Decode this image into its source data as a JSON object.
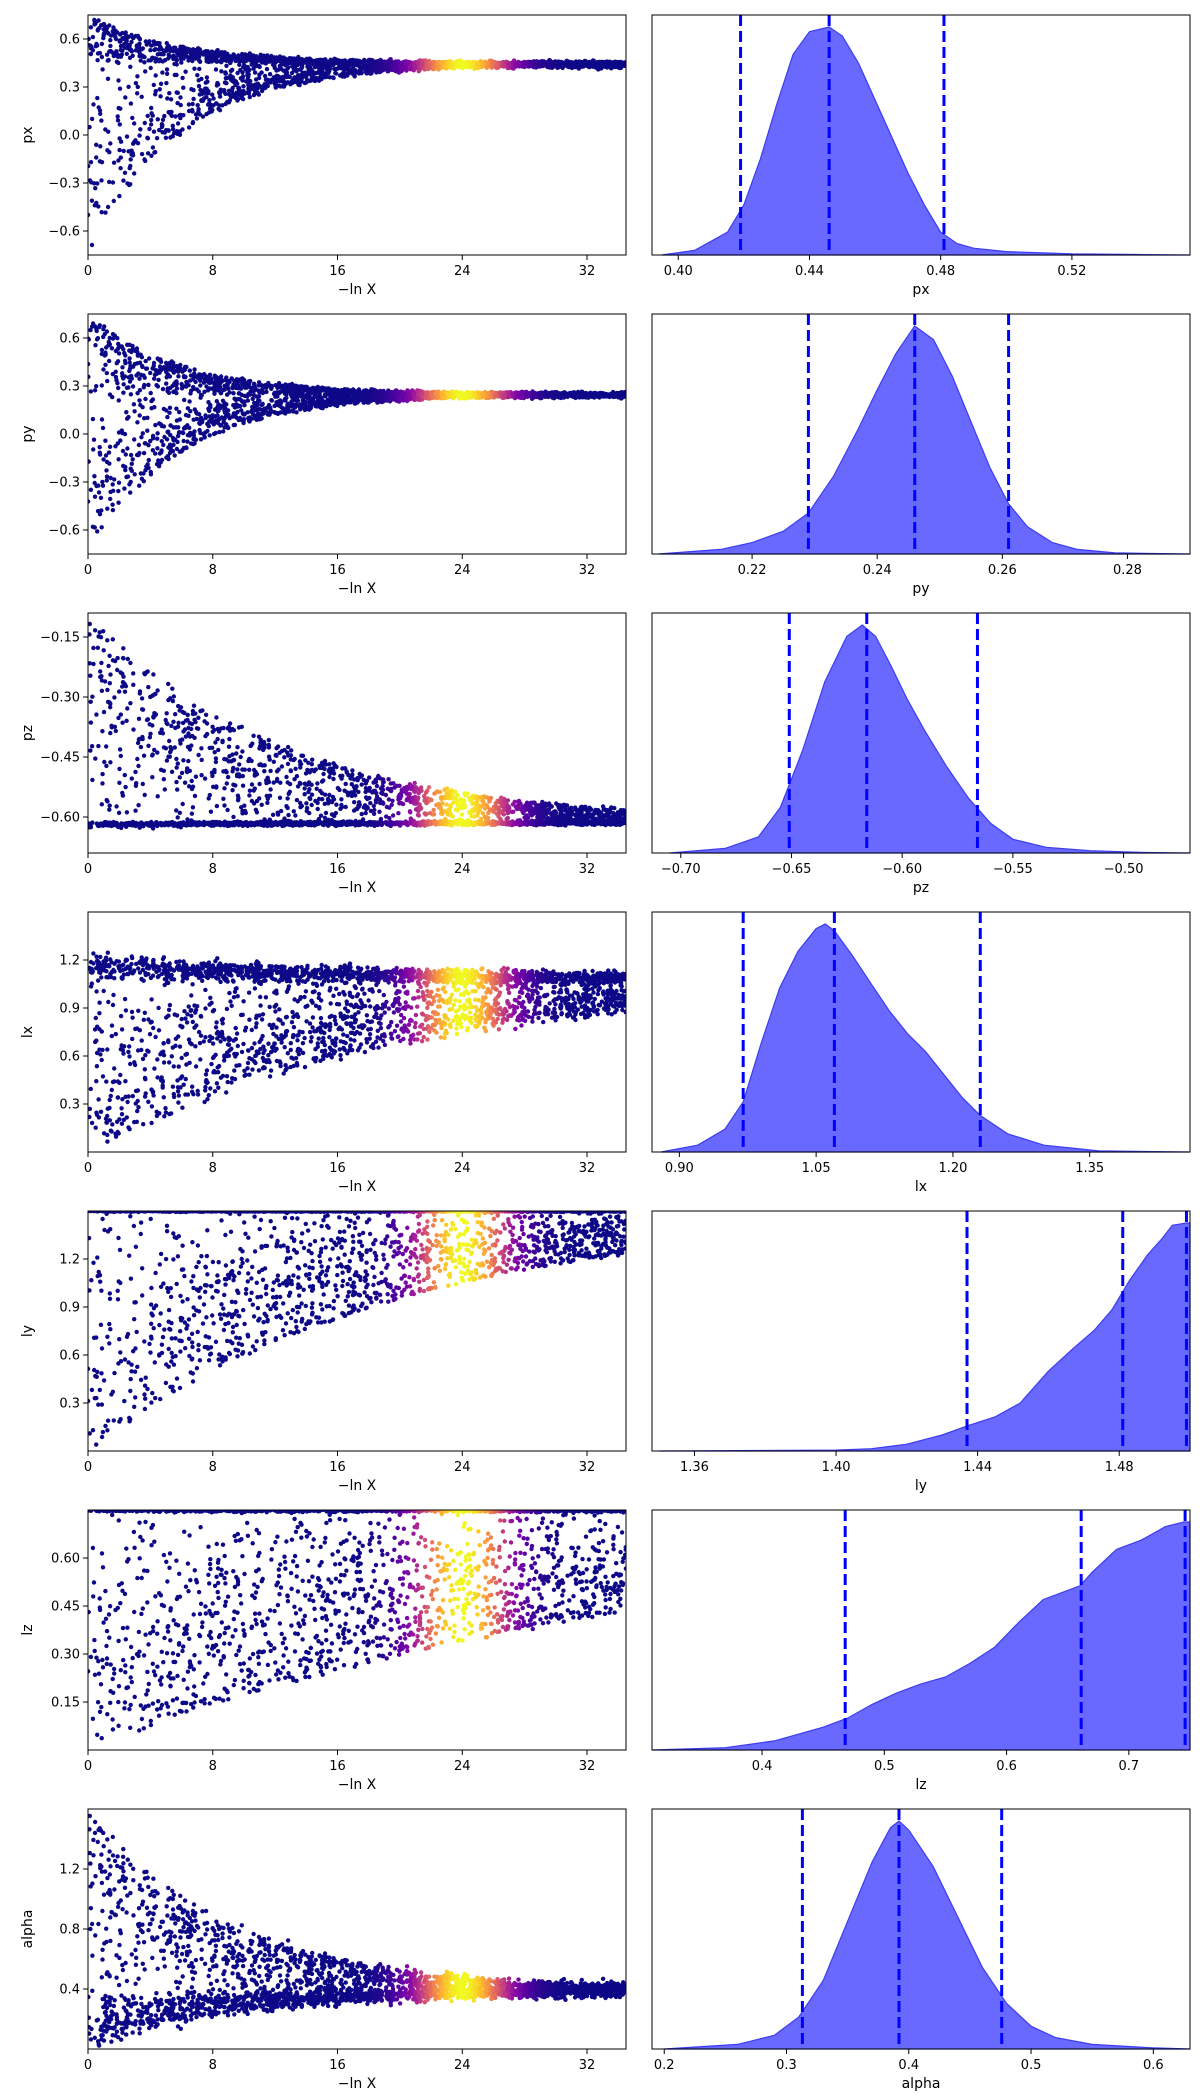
{
  "chart_data": [
    {
      "type": "scatter",
      "panel": "trace",
      "ylabel": "px",
      "xlabel": "−ln X",
      "xlim": [
        0,
        34.5
      ],
      "ylim": [
        -0.75,
        0.75
      ],
      "xticks": [
        "0",
        "8",
        "16",
        "24",
        "32"
      ],
      "xtick_values": [
        0,
        8,
        16,
        24,
        32
      ],
      "yticks": [
        "−0.6",
        "−0.3",
        "0.0",
        "0.3",
        "0.6"
      ],
      "ytick_values": [
        -0.6,
        -0.3,
        0,
        0.3,
        0.6
      ],
      "converge_to": 0.445,
      "peak_x": 24,
      "colormap": "plasma"
    },
    {
      "type": "area",
      "panel": "posterior",
      "xlabel": "px",
      "xlim": [
        0.392,
        0.556
      ],
      "xticks": [
        "0.40",
        "0.44",
        "0.48",
        "0.52"
      ],
      "xtick_values": [
        0.4,
        0.44,
        0.48,
        0.52
      ],
      "quantile_lines": [
        0.419,
        0.446,
        0.481
      ],
      "density_x": [
        0.395,
        0.405,
        0.415,
        0.42,
        0.425,
        0.43,
        0.435,
        0.44,
        0.446,
        0.45,
        0.455,
        0.46,
        0.465,
        0.47,
        0.475,
        0.48,
        0.485,
        0.49,
        0.5,
        0.51,
        0.52,
        0.54,
        0.556
      ],
      "density_y": [
        0.0,
        0.02,
        0.1,
        0.22,
        0.42,
        0.66,
        0.88,
        0.98,
        1.0,
        0.96,
        0.84,
        0.68,
        0.52,
        0.36,
        0.22,
        0.1,
        0.05,
        0.03,
        0.015,
        0.01,
        0.005,
        0.002,
        0.0
      ]
    },
    {
      "type": "scatter",
      "panel": "trace",
      "ylabel": "py",
      "xlabel": "−ln X",
      "xlim": [
        0,
        34.5
      ],
      "ylim": [
        -0.75,
        0.75
      ],
      "xticks": [
        "0",
        "8",
        "16",
        "24",
        "32"
      ],
      "xtick_values": [
        0,
        8,
        16,
        24,
        32
      ],
      "yticks": [
        "−0.6",
        "−0.3",
        "0.0",
        "0.3",
        "0.6"
      ],
      "ytick_values": [
        -0.6,
        -0.3,
        0,
        0.3,
        0.6
      ],
      "converge_to": 0.246,
      "peak_x": 24,
      "colormap": "plasma"
    },
    {
      "type": "area",
      "panel": "posterior",
      "xlabel": "py",
      "xlim": [
        0.204,
        0.29
      ],
      "xticks": [
        "0.22",
        "0.24",
        "0.26",
        "0.28"
      ],
      "xtick_values": [
        0.22,
        0.24,
        0.26,
        0.28
      ],
      "quantile_lines": [
        0.229,
        0.246,
        0.261
      ],
      "density_x": [
        0.205,
        0.215,
        0.22,
        0.225,
        0.229,
        0.233,
        0.237,
        0.24,
        0.243,
        0.246,
        0.249,
        0.252,
        0.255,
        0.258,
        0.261,
        0.264,
        0.268,
        0.272,
        0.278,
        0.29
      ],
      "density_y": [
        0.0,
        0.02,
        0.05,
        0.1,
        0.18,
        0.34,
        0.55,
        0.72,
        0.88,
        1.0,
        0.94,
        0.78,
        0.58,
        0.38,
        0.22,
        0.12,
        0.05,
        0.02,
        0.005,
        0.0
      ]
    },
    {
      "type": "scatter",
      "panel": "trace",
      "ylabel": "pz",
      "xlabel": "−ln X",
      "xlim": [
        0,
        34.5
      ],
      "ylim": [
        -0.69,
        -0.09
      ],
      "xticks": [
        "0",
        "8",
        "16",
        "24",
        "32"
      ],
      "xtick_values": [
        0,
        8,
        16,
        24,
        32
      ],
      "yticks": [
        "−0.60",
        "−0.45",
        "−0.30",
        "−0.15"
      ],
      "ytick_values": [
        -0.6,
        -0.45,
        -0.3,
        -0.15
      ],
      "converge_to": -0.615,
      "peak_x": 24,
      "colormap": "plasma"
    },
    {
      "type": "area",
      "panel": "posterior",
      "xlabel": "pz",
      "xlim": [
        -0.713,
        -0.47
      ],
      "xticks": [
        "−0.70",
        "−0.65",
        "−0.60",
        "−0.55",
        "−0.50"
      ],
      "xtick_values": [
        -0.7,
        -0.65,
        -0.6,
        -0.55,
        -0.5
      ],
      "quantile_lines": [
        -0.651,
        -0.616,
        -0.566
      ],
      "density_x": [
        -0.705,
        -0.68,
        -0.665,
        -0.655,
        -0.645,
        -0.635,
        -0.625,
        -0.618,
        -0.612,
        -0.605,
        -0.598,
        -0.59,
        -0.58,
        -0.57,
        -0.56,
        -0.55,
        -0.535,
        -0.515,
        -0.49,
        -0.47
      ],
      "density_y": [
        0.0,
        0.02,
        0.07,
        0.2,
        0.45,
        0.75,
        0.95,
        1.0,
        0.95,
        0.82,
        0.68,
        0.54,
        0.38,
        0.24,
        0.13,
        0.06,
        0.025,
        0.01,
        0.002,
        0.0
      ]
    },
    {
      "type": "scatter",
      "panel": "trace",
      "ylabel": "lx",
      "xlabel": "−ln X",
      "xlim": [
        0,
        34.5
      ],
      "ylim": [
        0.0,
        1.5
      ],
      "xticks": [
        "0",
        "8",
        "16",
        "24",
        "32"
      ],
      "xtick_values": [
        0,
        8,
        16,
        24,
        32
      ],
      "yticks": [
        "0.3",
        "0.6",
        "0.9",
        "1.2"
      ],
      "ytick_values": [
        0.3,
        0.6,
        0.9,
        1.2
      ],
      "converge_to": 1.07,
      "peak_x": 24,
      "colormap": "plasma"
    },
    {
      "type": "area",
      "panel": "posterior",
      "xlabel": "lx",
      "xlim": [
        0.87,
        1.46
      ],
      "xticks": [
        "0.90",
        "1.05",
        "1.20",
        "1.35"
      ],
      "xtick_values": [
        0.9,
        1.05,
        1.2,
        1.35
      ],
      "quantile_lines": [
        0.97,
        1.07,
        1.23
      ],
      "density_x": [
        0.88,
        0.92,
        0.95,
        0.97,
        0.99,
        1.01,
        1.03,
        1.05,
        1.06,
        1.07,
        1.09,
        1.11,
        1.13,
        1.15,
        1.17,
        1.19,
        1.21,
        1.23,
        1.26,
        1.3,
        1.36,
        1.46
      ],
      "density_y": [
        0.0,
        0.03,
        0.1,
        0.22,
        0.48,
        0.72,
        0.88,
        0.98,
        1.0,
        0.97,
        0.86,
        0.74,
        0.62,
        0.52,
        0.44,
        0.34,
        0.24,
        0.16,
        0.08,
        0.03,
        0.005,
        0.0
      ]
    },
    {
      "type": "scatter",
      "panel": "trace",
      "ylabel": "ly",
      "xlabel": "−ln X",
      "xlim": [
        0,
        34.5
      ],
      "ylim": [
        0.0,
        1.5
      ],
      "xticks": [
        "0",
        "8",
        "16",
        "24",
        "32"
      ],
      "xtick_values": [
        0,
        8,
        16,
        24,
        32
      ],
      "yticks": [
        "0.3",
        "0.6",
        "0.9",
        "1.2"
      ],
      "ytick_values": [
        0.3,
        0.6,
        0.9,
        1.2
      ],
      "converge_to": 1.5,
      "peak_x": 24,
      "colormap": "plasma"
    },
    {
      "type": "area",
      "panel": "posterior",
      "xlabel": "ly",
      "xlim": [
        1.348,
        1.5
      ],
      "xticks": [
        "1.36",
        "1.40",
        "1.44",
        "1.48"
      ],
      "xtick_values": [
        1.36,
        1.4,
        1.44,
        1.48
      ],
      "quantile_lines": [
        1.437,
        1.481,
        1.499
      ],
      "density_x": [
        1.35,
        1.38,
        1.4,
        1.41,
        1.42,
        1.43,
        1.437,
        1.445,
        1.452,
        1.46,
        1.467,
        1.473,
        1.478,
        1.483,
        1.488,
        1.492,
        1.495,
        1.499,
        1.5
      ],
      "density_y": [
        0.0,
        0.002,
        0.004,
        0.01,
        0.03,
        0.07,
        0.11,
        0.15,
        0.21,
        0.35,
        0.45,
        0.53,
        0.62,
        0.75,
        0.86,
        0.93,
        0.99,
        1.0,
        1.0
      ]
    },
    {
      "type": "scatter",
      "panel": "trace",
      "ylabel": "lz",
      "xlabel": "−ln X",
      "xlim": [
        0,
        34.5
      ],
      "ylim": [
        0.0,
        0.75
      ],
      "xticks": [
        "0",
        "8",
        "16",
        "24",
        "32"
      ],
      "xtick_values": [
        0,
        8,
        16,
        24,
        32
      ],
      "yticks": [
        "0.15",
        "0.30",
        "0.45",
        "0.60"
      ],
      "ytick_values": [
        0.15,
        0.3,
        0.45,
        0.6
      ],
      "converge_to": 0.75,
      "peak_x": 24,
      "colormap": "plasma"
    },
    {
      "type": "area",
      "panel": "posterior",
      "xlabel": "lz",
      "xlim": [
        0.31,
        0.75
      ],
      "xticks": [
        "0.4",
        "0.5",
        "0.6",
        "0.7"
      ],
      "xtick_values": [
        0.4,
        0.5,
        0.6,
        0.7
      ],
      "quantile_lines": [
        0.468,
        0.661,
        0.746
      ],
      "density_x": [
        0.31,
        0.37,
        0.41,
        0.45,
        0.47,
        0.49,
        0.51,
        0.53,
        0.55,
        0.57,
        0.59,
        0.61,
        0.63,
        0.65,
        0.66,
        0.67,
        0.69,
        0.71,
        0.73,
        0.745,
        0.75
      ],
      "density_y": [
        0.0,
        0.01,
        0.04,
        0.1,
        0.14,
        0.2,
        0.25,
        0.29,
        0.32,
        0.38,
        0.45,
        0.56,
        0.66,
        0.7,
        0.72,
        0.78,
        0.88,
        0.92,
        0.98,
        1.0,
        1.0
      ]
    },
    {
      "type": "scatter",
      "panel": "trace",
      "ylabel": "alpha",
      "xlabel": "−ln X",
      "xlim": [
        0,
        34.5
      ],
      "ylim": [
        0.0,
        1.6
      ],
      "xticks": [
        "0",
        "8",
        "16",
        "24",
        "32"
      ],
      "xtick_values": [
        0,
        8,
        16,
        24,
        32
      ],
      "yticks": [
        "0.4",
        "0.8",
        "1.2"
      ],
      "ytick_values": [
        0.4,
        0.8,
        1.2
      ],
      "converge_to": 0.385,
      "peak_x": 24,
      "colormap": "plasma"
    },
    {
      "type": "area",
      "panel": "posterior",
      "xlabel": "alpha",
      "xlim": [
        0.19,
        0.63
      ],
      "xticks": [
        "0.2",
        "0.3",
        "0.4",
        "0.5",
        "0.6"
      ],
      "xtick_values": [
        0.2,
        0.3,
        0.4,
        0.5,
        0.6
      ],
      "quantile_lines": [
        0.313,
        0.392,
        0.476
      ],
      "density_x": [
        0.2,
        0.26,
        0.29,
        0.31,
        0.33,
        0.35,
        0.37,
        0.385,
        0.392,
        0.4,
        0.42,
        0.44,
        0.46,
        0.48,
        0.5,
        0.52,
        0.55,
        0.6,
        0.63
      ],
      "density_y": [
        0.0,
        0.02,
        0.06,
        0.14,
        0.3,
        0.56,
        0.82,
        0.97,
        1.0,
        0.96,
        0.8,
        0.58,
        0.36,
        0.2,
        0.1,
        0.05,
        0.02,
        0.005,
        0.0
      ]
    }
  ],
  "colors": {
    "trace_base": "#0d0887",
    "posterior_fill": "#6666ff",
    "posterior_edge": "#3c3cf0",
    "quantile_line": "#0000ff"
  }
}
